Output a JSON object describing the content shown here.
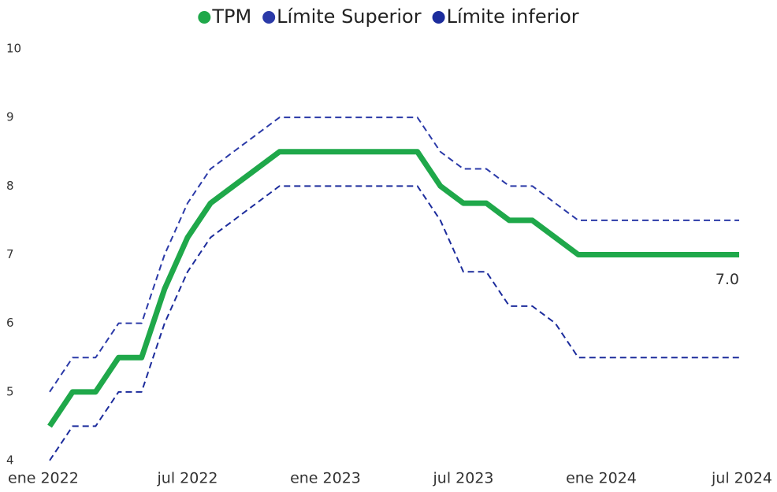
{
  "chart_data": {
    "type": "line",
    "categories": [
      "ene 2022",
      null,
      null,
      null,
      null,
      null,
      "jul 2022",
      null,
      null,
      null,
      null,
      null,
      "ene 2023",
      null,
      null,
      null,
      null,
      null,
      "jul 2023",
      null,
      null,
      null,
      null,
      null,
      "ene 2024",
      null,
      null,
      null,
      null,
      null,
      "jul 2024"
    ],
    "series": [
      {
        "name": "TPM",
        "color": "#1fa84a",
        "style": "solid",
        "values": [
          4.5,
          5.0,
          5.0,
          5.5,
          5.5,
          6.5,
          7.25,
          7.75,
          8.0,
          8.25,
          8.5,
          8.5,
          8.5,
          8.5,
          8.5,
          8.5,
          8.5,
          8.0,
          7.75,
          7.75,
          7.5,
          7.5,
          7.25,
          7.0,
          7.0,
          7.0,
          7.0,
          7.0,
          7.0,
          7.0,
          7.0
        ],
        "value_labels": [
          null,
          null,
          null,
          null,
          null,
          null,
          null,
          null,
          null,
          null,
          null,
          null,
          null,
          null,
          null,
          null,
          null,
          null,
          null,
          null,
          null,
          null,
          null,
          null,
          null,
          null,
          null,
          null,
          null,
          null,
          "7.0"
        ]
      },
      {
        "name": "Límite Superior",
        "color": "#2b3aa8",
        "style": "dashed",
        "values": [
          5.0,
          5.5,
          5.5,
          6.0,
          6.0,
          7.0,
          7.75,
          8.25,
          8.5,
          8.75,
          9.0,
          9.0,
          9.0,
          9.0,
          9.0,
          9.0,
          9.0,
          8.5,
          8.25,
          8.25,
          8.0,
          8.0,
          7.75,
          7.5,
          7.5,
          7.5,
          7.5,
          7.5,
          7.5,
          7.5,
          7.5
        ]
      },
      {
        "name": "Límite inferior",
        "color": "#1c2c9c",
        "style": "dashed",
        "values": [
          4.0,
          4.5,
          4.5,
          5.0,
          5.0,
          6.0,
          6.75,
          7.25,
          7.5,
          7.75,
          8.0,
          8.0,
          8.0,
          8.0,
          8.0,
          8.0,
          8.0,
          7.5,
          6.75,
          6.75,
          6.25,
          6.25,
          6.0,
          5.5,
          5.5,
          5.5,
          5.5,
          5.5,
          5.5,
          5.5,
          5.5
        ]
      }
    ],
    "ylim": [
      4,
      10
    ],
    "yticks": [
      4,
      5,
      6,
      7,
      8,
      9,
      10
    ],
    "grid": false,
    "legend": "top"
  }
}
